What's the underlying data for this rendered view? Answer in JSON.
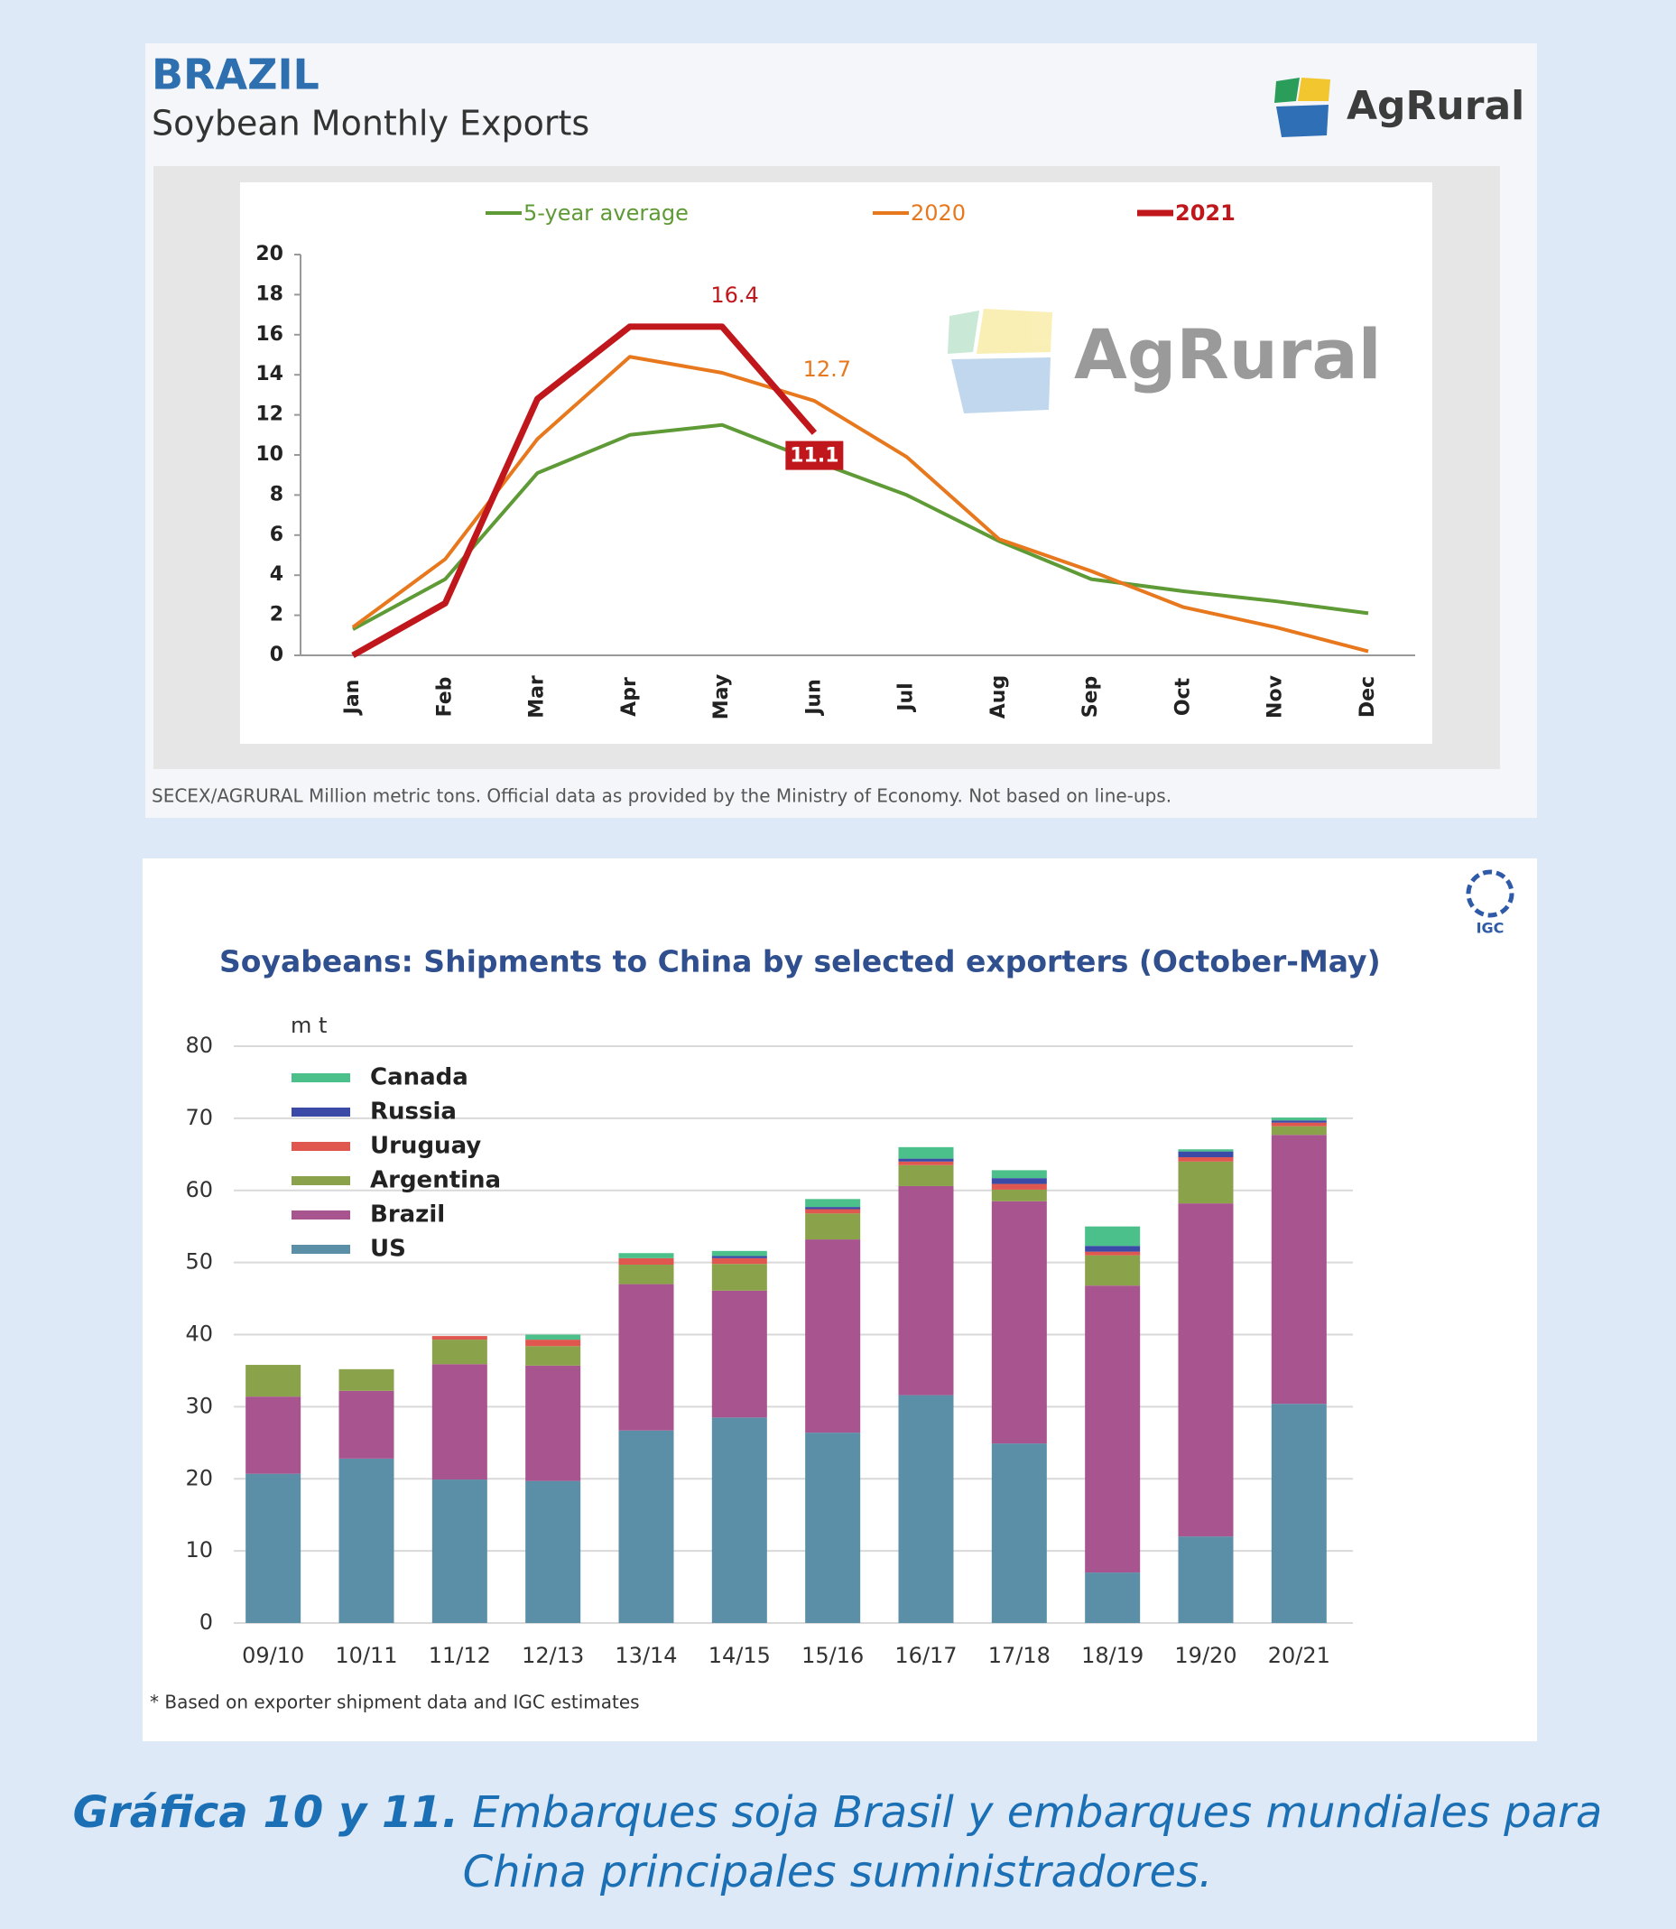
{
  "chart_data": [
    {
      "type": "line",
      "title": "BRAZIL",
      "subtitle": "Soybean Monthly Exports",
      "brand": "AgRural",
      "watermark": "AgRural",
      "categories": [
        "Jan",
        "Feb",
        "Mar",
        "Apr",
        "May",
        "Jun",
        "Jul",
        "Aug",
        "Sep",
        "Oct",
        "Nov",
        "Dec"
      ],
      "series": [
        {
          "name": "5-year average",
          "color": "#5e9a35",
          "values": [
            1.3,
            3.8,
            9.1,
            11.0,
            11.5,
            9.7,
            8.0,
            5.7,
            3.8,
            3.2,
            2.7,
            2.1
          ]
        },
        {
          "name": "2020",
          "color": "#e8781e",
          "values": [
            1.4,
            4.8,
            10.8,
            14.9,
            14.1,
            12.7,
            9.9,
            5.8,
            4.2,
            2.4,
            1.4,
            0.2
          ],
          "labels_at": [
            5
          ]
        },
        {
          "name": "2021",
          "color": "#c0171c",
          "values": [
            0,
            2.6,
            12.8,
            16.4,
            16.4,
            11.1,
            null,
            null,
            null,
            null,
            null,
            null
          ],
          "labels_at": [
            4
          ],
          "boxed_labels_at": [
            5
          ]
        }
      ],
      "ylim": [
        0,
        20
      ],
      "yticks": [
        0,
        2,
        4,
        6,
        8,
        10,
        12,
        14,
        16,
        18,
        20
      ],
      "source": "SECEX/AGRURAL  Million metric tons. Official data as provided by the Ministry of Economy. Not based on line-ups."
    },
    {
      "type": "stacked_bar",
      "title": "Soyabeans: Shipments to China by selected exporters (October-May)",
      "brand": "IGC",
      "y_unit": "m t",
      "categories": [
        "09/10",
        "10/11",
        "11/12",
        "12/13",
        "13/14",
        "14/15",
        "15/16",
        "16/17",
        "17/18",
        "18/19",
        "19/20",
        "20/21"
      ],
      "series": [
        {
          "name": "US",
          "color": "#5b8fa8",
          "values": [
            20.7,
            22.8,
            19.9,
            19.7,
            26.7,
            28.5,
            26.4,
            31.6,
            24.9,
            7.0,
            12.0,
            30.4
          ]
        },
        {
          "name": "Brazil",
          "color": "#a8548f",
          "values": [
            10.7,
            9.4,
            16.0,
            16.0,
            20.3,
            17.6,
            26.8,
            29.0,
            33.6,
            39.8,
            46.2,
            37.3
          ]
        },
        {
          "name": "Argentina",
          "color": "#8aa24a",
          "values": [
            4.4,
            3.0,
            3.4,
            2.7,
            2.7,
            3.7,
            3.6,
            2.9,
            1.6,
            4.2,
            5.8,
            1.2
          ]
        },
        {
          "name": "Uruguay",
          "color": "#e0574f",
          "values": [
            0,
            0,
            0.5,
            0.9,
            0.9,
            0.8,
            0.6,
            0.5,
            0.8,
            0.5,
            0.6,
            0.5
          ]
        },
        {
          "name": "Russia",
          "color": "#3a4aa6",
          "values": [
            0,
            0,
            0,
            0,
            0,
            0.3,
            0.3,
            0.4,
            0.8,
            0.8,
            0.8,
            0.3
          ]
        },
        {
          "name": "Canada",
          "color": "#4cc08a",
          "values": [
            0,
            0,
            0,
            0.7,
            0.7,
            0.7,
            1.1,
            1.6,
            1.1,
            2.7,
            0.3,
            0.4
          ]
        }
      ],
      "ylim": [
        0,
        80
      ],
      "yticks": [
        0,
        10,
        20,
        30,
        40,
        50,
        60,
        70,
        80
      ],
      "grid": true,
      "note": "* Based on exporter shipment data and IGC estimates"
    }
  ],
  "caption": {
    "label": "Gráfica 10 y 11.",
    "text": "Embarques soja Brasil y embarques mundiales para China principales suministradores."
  }
}
